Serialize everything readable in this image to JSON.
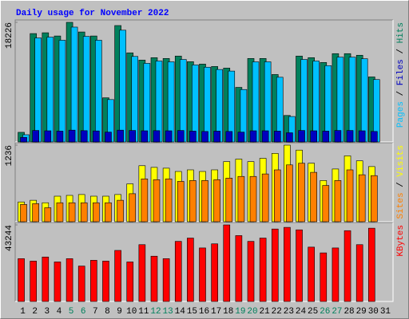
{
  "chart_data": {
    "type": "bar",
    "title": "Daily usage for November 2022",
    "categories": [
      "1",
      "2",
      "3",
      "4",
      "5",
      "6",
      "7",
      "8",
      "9",
      "10",
      "11",
      "12",
      "13",
      "14",
      "15",
      "16",
      "17",
      "18",
      "19",
      "20",
      "21",
      "22",
      "23",
      "24",
      "25",
      "26",
      "27",
      "28",
      "29",
      "30",
      "31"
    ],
    "category_colors": [
      "#000000",
      "#000000",
      "#000000",
      "#000000",
      "#00805c",
      "#00805c",
      "#000000",
      "#000000",
      "#000000",
      "#000000",
      "#000000",
      "#00805c",
      "#00805c",
      "#000000",
      "#000000",
      "#000000",
      "#000000",
      "#000000",
      "#00805c",
      "#00805c",
      "#000000",
      "#000000",
      "#000000",
      "#000000",
      "#000000",
      "#00805c",
      "#00805c",
      "#000000",
      "#000000",
      "#000000",
      "#000000"
    ],
    "legend_separator": " / ",
    "panels": [
      {
        "ylim": [
          0,
          18226
        ],
        "yticks": [
          18226
        ],
        "series": [
          {
            "name": "Pages",
            "color": "#00c0ff",
            "values": [
              1100,
              15850,
              15970,
              15500,
              17500,
              16090,
              15500,
              6460,
              17030,
              13030,
              11980,
              12330,
              12210,
              12570,
              11740,
              11390,
              11040,
              10800,
              7990,
              12210,
              12210,
              9860,
              3880,
              12570,
              12330,
              11630,
              12920,
              12920,
              12680,
              9510,
              null
            ]
          },
          {
            "name": "Files",
            "color": "#0000c0",
            "values": [
              700,
              1750,
              1700,
              1650,
              1800,
              1720,
              1680,
              1500,
              1800,
              1750,
              1700,
              1720,
              1700,
              1750,
              1650,
              1600,
              1650,
              1600,
              1500,
              1700,
              1700,
              1650,
              1400,
              1750,
              1700,
              1650,
              1750,
              1750,
              1700,
              1600,
              null
            ]
          },
          {
            "name": "Hits",
            "color": "#00805c",
            "values": [
              1468,
              16513,
              16636,
              16147,
              18226,
              16758,
              16147,
              6728,
              17737,
              13578,
              12477,
              12844,
              12722,
              13089,
              12232,
              11865,
              11498,
              11254,
              8318,
              12722,
              12722,
              10275,
              4037,
              13089,
              12844,
              12110,
              13456,
              13456,
              13211,
              9908,
              null
            ]
          }
        ]
      },
      {
        "ylim": [
          0,
          1236
        ],
        "yticks": [
          1236
        ],
        "series": [
          {
            "name": "Sites",
            "color": "#ff8000",
            "values": [
              279,
              292,
              226,
              306,
              306,
              306,
              306,
              306,
              346,
              452,
              691,
              678,
              691,
              651,
              665,
              665,
              678,
              704,
              731,
              731,
              771,
              837,
              917,
              944,
              797,
              585,
              665,
              837,
              758,
              744,
              null
            ]
          },
          {
            "name": "Visits",
            "color": "#ffff00",
            "values": [
              319,
              346,
              306,
              412,
              425,
              439,
              412,
              412,
              439,
              611,
              904,
              877,
              864,
              811,
              837,
              811,
              837,
              970,
              1010,
              970,
              1023,
              1103,
              1236,
              1156,
              944,
              665,
              851,
              1063,
              983,
              890,
              null
            ]
          }
        ]
      },
      {
        "ylim": [
          0,
          43244
        ],
        "yticks": [
          43244
        ],
        "series": [
          {
            "name": "KBytes",
            "color": "#ff0000",
            "values": [
              24180,
              22785,
              25110,
              22320,
              24180,
              19995,
              23250,
              22785,
              28830,
              22320,
              32085,
              25575,
              24180,
              33945,
              35805,
              30225,
              32550,
              43244,
              37200,
              33945,
              35805,
              40920,
              41850,
              40455,
              30690,
              27435,
              30225,
              39990,
              32085,
              41385,
              null
            ]
          }
        ]
      }
    ]
  }
}
